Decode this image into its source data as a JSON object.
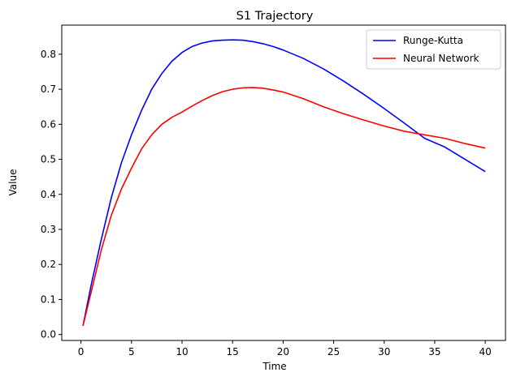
{
  "chart_data": {
    "type": "line",
    "title": "S1 Trajectory",
    "xlabel": "Time",
    "ylabel": "Value",
    "xlim": [
      -1.9,
      42
    ],
    "ylim": [
      -0.017,
      0.883
    ],
    "xticks": [
      0,
      5,
      10,
      15,
      20,
      25,
      30,
      35,
      40
    ],
    "yticks": [
      0.0,
      0.1,
      0.2,
      0.3,
      0.4,
      0.5,
      0.6,
      0.7,
      0.8
    ],
    "ytick_labels": [
      "0.0",
      "0.1",
      "0.2",
      "0.3",
      "0.4",
      "0.5",
      "0.6",
      "0.7",
      "0.8"
    ],
    "grid": false,
    "legend_position": "top-right",
    "series": [
      {
        "name": "Runge-Kutta",
        "color": "#0000ff",
        "x": [
          0.2,
          1,
          2,
          3,
          4,
          5,
          6,
          7,
          8,
          9,
          10,
          11,
          12,
          13,
          14,
          15,
          16,
          17,
          18,
          19,
          20,
          22,
          24,
          26,
          28,
          30,
          32,
          34,
          36,
          38,
          40
        ],
        "y": [
          0.025,
          0.14,
          0.27,
          0.39,
          0.49,
          0.57,
          0.64,
          0.7,
          0.745,
          0.78,
          0.805,
          0.822,
          0.832,
          0.838,
          0.84,
          0.841,
          0.84,
          0.836,
          0.83,
          0.822,
          0.812,
          0.788,
          0.758,
          0.723,
          0.685,
          0.645,
          0.603,
          0.56,
          0.535,
          0.5,
          0.465
        ]
      },
      {
        "name": "Neural Network",
        "color": "#ff0000",
        "x": [
          0.2,
          1,
          2,
          3,
          4,
          5,
          6,
          7,
          8,
          9,
          10,
          11,
          12,
          13,
          14,
          15,
          16,
          17,
          18,
          19,
          20,
          22,
          24,
          26,
          28,
          30,
          32,
          34,
          36,
          38,
          40
        ],
        "y": [
          0.025,
          0.12,
          0.24,
          0.34,
          0.415,
          0.475,
          0.53,
          0.57,
          0.6,
          0.62,
          0.635,
          0.652,
          0.668,
          0.682,
          0.693,
          0.7,
          0.704,
          0.705,
          0.703,
          0.698,
          0.692,
          0.673,
          0.65,
          0.63,
          0.612,
          0.595,
          0.58,
          0.57,
          0.56,
          0.545,
          0.532
        ]
      }
    ]
  }
}
